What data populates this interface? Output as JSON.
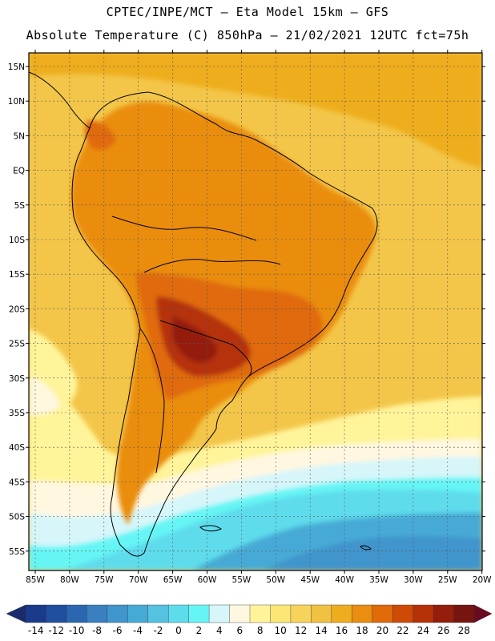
{
  "title_line1": "CPTEC/INPE/MCT –  Eta Model 15km – GFS",
  "title_line2": "Absolute Temperature (C) 850hPa – 21/02/2021 12UTC fct=75h",
  "lat_labels": [
    "15N",
    "10N",
    "5N",
    "EQ",
    "5S",
    "10S",
    "15S",
    "20S",
    "25S",
    "30S",
    "35S",
    "40S",
    "45S",
    "50S",
    "55S"
  ],
  "lon_labels": [
    "85W",
    "80W",
    "75W",
    "70W",
    "65W",
    "60W",
    "55W",
    "50W",
    "45W",
    "40W",
    "35W",
    "30W",
    "25W",
    "20W"
  ],
  "colorbar": {
    "labels": [
      "-14",
      "-12",
      "-10",
      "-8",
      "-6",
      "-4",
      "-2",
      "0",
      "2",
      "4",
      "6",
      "8",
      "10",
      "12",
      "14",
      "16",
      "18",
      "20",
      "22",
      "24",
      "26",
      "28"
    ],
    "colors": [
      "#1a3a8c",
      "#1f4f9e",
      "#2a67b0",
      "#3a80c0",
      "#3f95cc",
      "#47aad6",
      "#55c2e2",
      "#5fdcec",
      "#66f5f5",
      "#d6f6fa",
      "#fff7e0",
      "#fff49a",
      "#fbe676",
      "#f6d35a",
      "#f1c141",
      "#eead1f",
      "#ea8d10",
      "#e06a08",
      "#cf4a06",
      "#b53108",
      "#941d0c",
      "#76140f"
    ],
    "low_arrow_color": "#1a2b6e",
    "high_arrow_color": "#6a0a20"
  },
  "palette": {
    "ocean_warm": "#f3c649",
    "ocean_n": "#eead1f",
    "warm_land": "#ea8d10",
    "hot_land": "#e06a08",
    "very_hot": "#b53108",
    "hottest": "#941d0c",
    "pale_yellow": "#fff49a",
    "cream": "#fff7e0",
    "light_cyan": "#d6f6fa",
    "cyan": "#66f5f5",
    "aqua": "#5fdcec",
    "sky": "#47aad6",
    "blue": "#3f95cc"
  }
}
